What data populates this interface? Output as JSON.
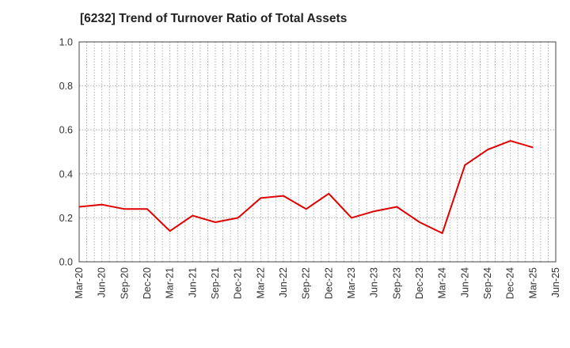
{
  "chart_data": {
    "type": "line",
    "title": "[6232]  Trend of Turnover Ratio of Total Assets",
    "xlabel": "",
    "ylabel": "",
    "ylim": [
      0,
      1.0
    ],
    "y_ticks": [
      "0.0",
      "0.2",
      "0.4",
      "0.6",
      "0.8",
      "1.0"
    ],
    "x_tick_labels": [
      "Mar-20",
      "Jun-20",
      "Sep-20",
      "Dec-20",
      "Mar-21",
      "Jun-21",
      "Sep-21",
      "Dec-21",
      "Mar-22",
      "Jun-22",
      "Sep-22",
      "Dec-22",
      "Mar-23",
      "Jun-23",
      "Sep-23",
      "Dec-23",
      "Mar-24",
      "Jun-24",
      "Sep-24",
      "Dec-24",
      "Mar-25",
      "Jun-25"
    ],
    "grid": true,
    "series": [
      {
        "color": "#e00000",
        "x": [
          "Mar-20",
          "Jun-20",
          "Sep-20",
          "Dec-20",
          "Mar-21",
          "Jun-21",
          "Sep-21",
          "Dec-21",
          "Mar-22",
          "Jun-22",
          "Sep-22",
          "Dec-22",
          "Mar-23",
          "Jun-23",
          "Sep-23",
          "Dec-23",
          "Mar-24",
          "Jun-24",
          "Sep-24",
          "Dec-24",
          "Mar-25"
        ],
        "values": [
          0.25,
          0.26,
          0.24,
          0.24,
          0.14,
          0.21,
          0.18,
          0.2,
          0.29,
          0.3,
          0.24,
          0.31,
          0.2,
          0.23,
          0.25,
          0.18,
          0.13,
          0.44,
          0.51,
          0.55,
          0.52
        ]
      }
    ]
  }
}
